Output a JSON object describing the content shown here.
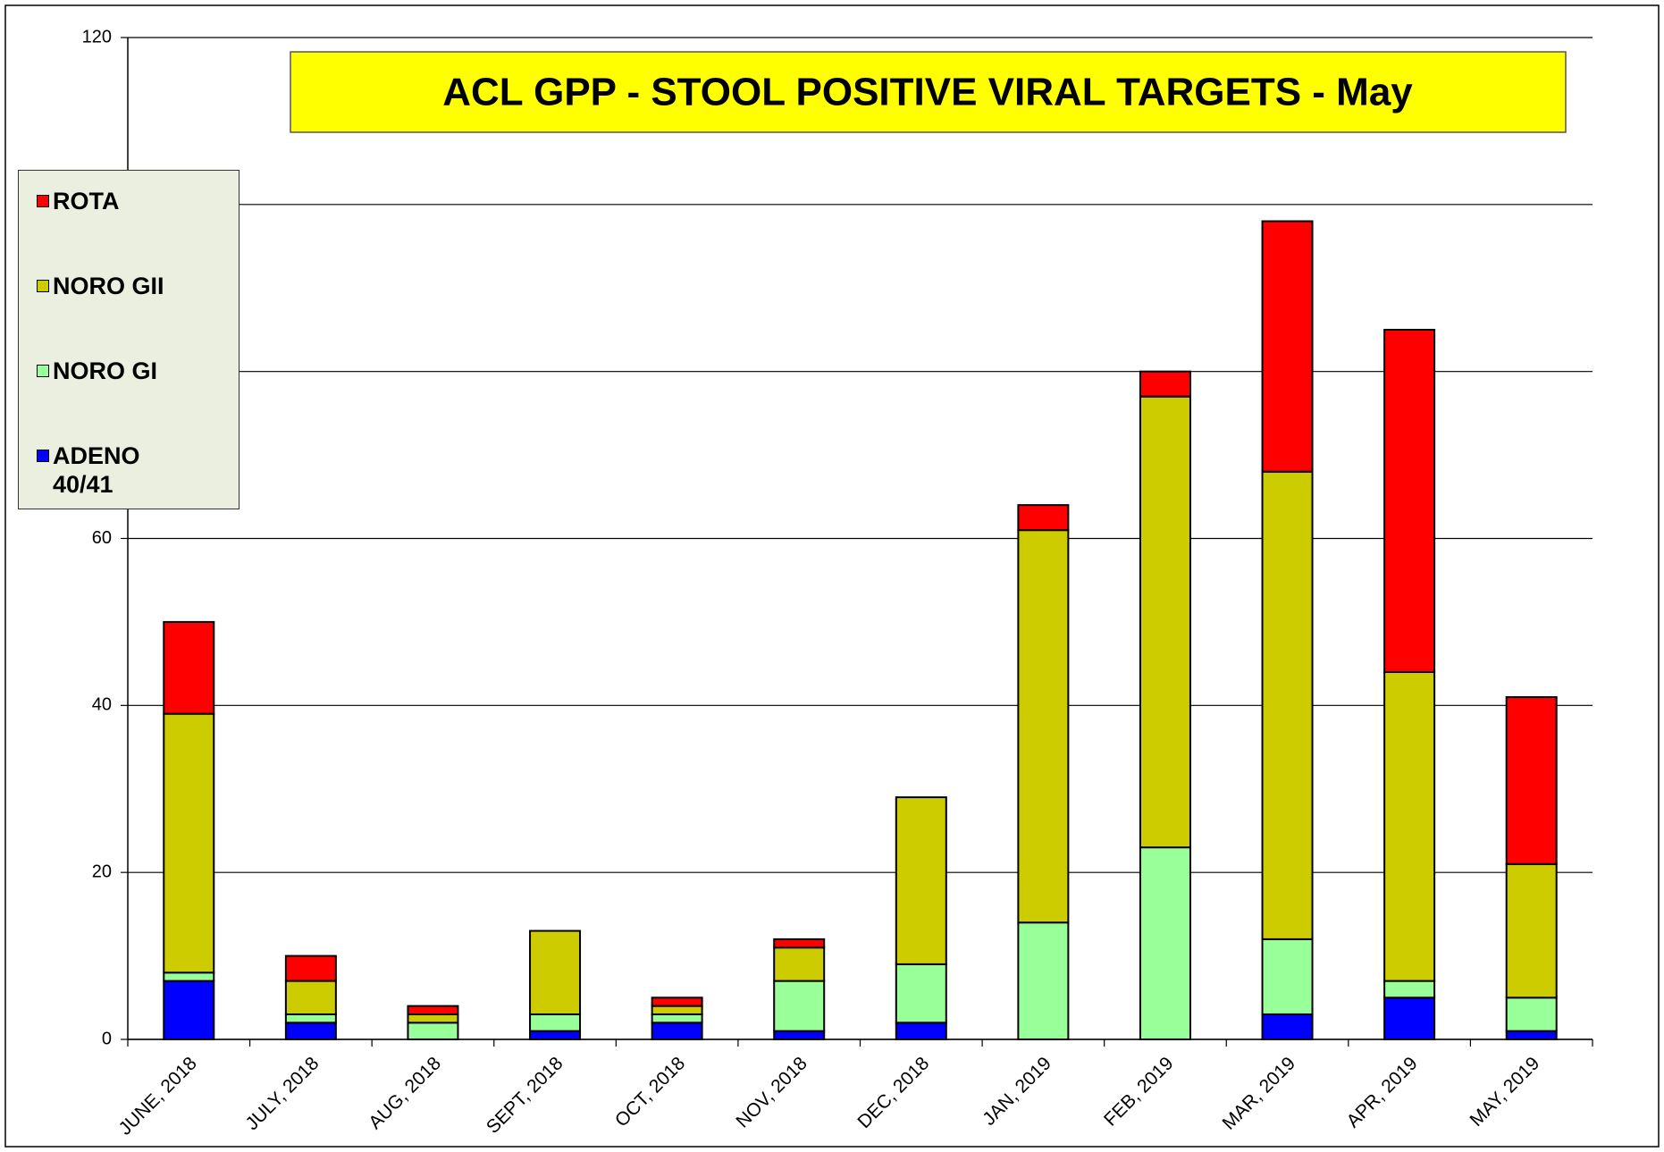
{
  "chart_data": {
    "type": "stacked-bar",
    "title": "ACL GPP - STOOL POSITIVE VIRAL TARGETS - May",
    "categories": [
      "JUNE, 2018",
      "JULY, 2018",
      "AUG, 2018",
      "SEPT, 2018",
      "OCT, 2018",
      "NOV, 2018",
      "DEC, 2018",
      "JAN, 2019",
      "FEB, 2019",
      "MAR, 2019",
      "APR, 2019",
      "MAY, 2019"
    ],
    "series": [
      {
        "name": "ADENO 40/41",
        "color": "#0000ff",
        "values": [
          7,
          2,
          0,
          1,
          2,
          1,
          2,
          0,
          0,
          3,
          5,
          1
        ]
      },
      {
        "name": "NORO GI",
        "color": "#99ff99",
        "values": [
          1,
          1,
          2,
          2,
          1,
          6,
          7,
          14,
          23,
          9,
          2,
          4
        ]
      },
      {
        "name": "NORO GII",
        "color": "#cccc00",
        "values": [
          31,
          4,
          1,
          10,
          1,
          4,
          20,
          47,
          54,
          56,
          37,
          16
        ]
      },
      {
        "name": "ROTA",
        "color": "#ff0000",
        "values": [
          11,
          3,
          1,
          0,
          1,
          1,
          0,
          3,
          3,
          30,
          41,
          20
        ]
      }
    ],
    "ylim": [
      0,
      120
    ],
    "yticks": [
      0,
      20,
      40,
      60,
      80,
      100,
      120
    ],
    "grid": true,
    "legend": "left"
  }
}
